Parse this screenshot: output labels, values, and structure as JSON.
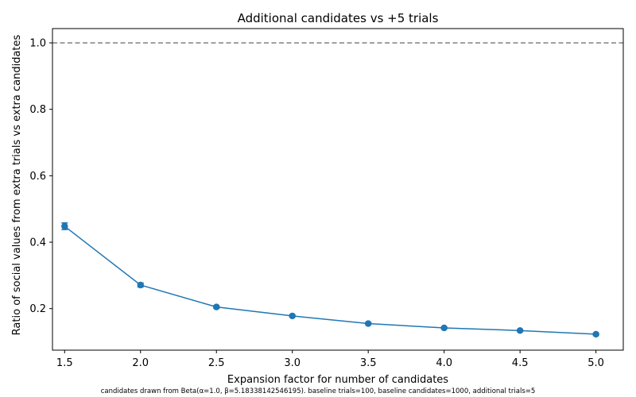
{
  "chart_data": {
    "type": "line",
    "title": "Additional candidates vs +5 trials",
    "xlabel": "Expansion factor for number of candidates",
    "ylabel": "Ratio of social values from extra trials vs extra candidates",
    "footnote": "candidates drawn from Beta(α=1.0, β=5.18338142546195). baseline trials=100, baseline candidates=1000, additional trials=5",
    "xlim": [
      1.42,
      5.18
    ],
    "ylim": [
      0.075,
      1.043
    ],
    "x_ticks": [
      1.5,
      2.0,
      2.5,
      3.0,
      3.5,
      4.0,
      4.5,
      5.0
    ],
    "x_tick_labels": [
      "1.5",
      "2.0",
      "2.5",
      "3.0",
      "3.5",
      "4.0",
      "4.5",
      "5.0"
    ],
    "y_ticks": [
      0.2,
      0.4,
      0.6,
      0.8,
      1.0
    ],
    "y_tick_labels": [
      "0.2",
      "0.4",
      "0.6",
      "0.8",
      "1.0"
    ],
    "grid": false,
    "reference_line": {
      "y": 1.0,
      "style": "dashed",
      "color": "#808080"
    },
    "series": [
      {
        "color": "#1f77b4",
        "marker": "circle",
        "x": [
          1.5,
          2.0,
          2.5,
          3.0,
          3.5,
          4.0,
          4.5,
          5.0
        ],
        "y": [
          0.448,
          0.271,
          0.205,
          0.178,
          0.155,
          0.142,
          0.134,
          0.123
        ],
        "yerr": [
          0.01,
          0.006,
          0.004,
          0.003,
          0.003,
          0.003,
          0.003,
          0.003
        ]
      }
    ]
  }
}
